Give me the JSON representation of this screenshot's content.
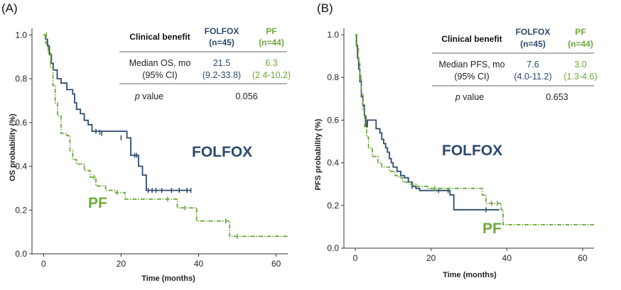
{
  "colors": {
    "folfox": "#2d4a6e",
    "pf": "#6ea83a",
    "axis": "#333333"
  },
  "chart_data": [
    {
      "type": "line",
      "step": true,
      "panel": "(A)",
      "xlabel": "Time (months)",
      "ylabel": "OS probability (%)",
      "xlim": [
        -3,
        63
      ],
      "ylim": [
        0,
        1.03
      ],
      "x_ticks": [
        0,
        20,
        40,
        60
      ],
      "y_ticks": [
        0.0,
        0.2,
        0.4,
        0.6,
        0.8,
        1.0
      ],
      "x_tick_labels": [
        "0",
        "20",
        "40",
        "60"
      ],
      "y_tick_labels": [
        "0.0",
        "0.2",
        "0.4",
        "0.6",
        "0.8",
        "1.0"
      ],
      "series": [
        {
          "name": "FOLFOX",
          "color": "#2d4a6e",
          "dash": "solid",
          "x": [
            0,
            0.5,
            1.0,
            1.5,
            2.0,
            2.5,
            3.5,
            4.5,
            6.0,
            7.5,
            8.0,
            8.5,
            9.5,
            10.5,
            11.5,
            12.5,
            21.5,
            22.5,
            24.5,
            25.5,
            26.5,
            38.0
          ],
          "y": [
            1.0,
            0.98,
            0.95,
            0.91,
            0.87,
            0.84,
            0.8,
            0.78,
            0.75,
            0.73,
            0.69,
            0.66,
            0.64,
            0.61,
            0.59,
            0.56,
            0.53,
            0.45,
            0.4,
            0.36,
            0.29,
            0.29
          ],
          "censored": [
            [
              13.5,
              0.56
            ],
            [
              14.5,
              0.555
            ],
            [
              15.0,
              0.55
            ],
            [
              20.0,
              0.53
            ],
            [
              23.5,
              0.45
            ],
            [
              24.0,
              0.45
            ],
            [
              27.0,
              0.29
            ],
            [
              28.0,
              0.29
            ],
            [
              29.0,
              0.29
            ],
            [
              30.5,
              0.29
            ],
            [
              33.0,
              0.29
            ],
            [
              35.0,
              0.29
            ],
            [
              37.0,
              0.29
            ],
            [
              38.0,
              0.29
            ]
          ]
        },
        {
          "name": "PF",
          "color": "#6ea83a",
          "dash": "dashdot",
          "x": [
            0,
            0.6,
            1.2,
            1.8,
            2.4,
            3.0,
            3.6,
            4.5,
            6.0,
            6.8,
            7.5,
            8.5,
            10.5,
            12.0,
            13.5,
            16.0,
            18.5,
            21.0,
            34.5,
            39.5,
            48.0,
            63.0
          ],
          "y": [
            1.0,
            0.96,
            0.92,
            0.85,
            0.77,
            0.69,
            0.63,
            0.55,
            0.54,
            0.47,
            0.43,
            0.41,
            0.38,
            0.35,
            0.31,
            0.29,
            0.28,
            0.25,
            0.21,
            0.15,
            0.08,
            0.08
          ],
          "censored": [
            [
              0.7,
              1.0
            ],
            [
              13.0,
              0.35
            ],
            [
              19.0,
              0.28
            ],
            [
              32.0,
              0.25
            ],
            [
              36.5,
              0.21
            ],
            [
              47.0,
              0.15
            ],
            [
              50.0,
              0.08
            ]
          ]
        }
      ],
      "annotations": {
        "folfox_label": "FOLFOX",
        "pf_label": "PF"
      },
      "table": {
        "header": {
          "col0": "Clinical benefit",
          "col1_line1": "FOLFOX",
          "col1_line2": "(n=45)",
          "col2_line1": "PF",
          "col2_line2": "(n=44)"
        },
        "row1": {
          "label_line1": "Median OS, mo",
          "label_line2": "(95% CI)",
          "v1_line1": "21.5",
          "v1_line2": "(9.2-33.8)",
          "v2_line1": "6.3",
          "v2_line2": "(2.4-10.2)"
        },
        "row2": {
          "label_p": "p",
          "label_rest": " value",
          "value": "0.056"
        }
      }
    },
    {
      "type": "line",
      "step": true,
      "panel": "(B)",
      "xlabel": "Time (months)",
      "ylabel": "PFS probability (%)",
      "xlim": [
        -3,
        63
      ],
      "ylim": [
        0,
        1.03
      ],
      "x_ticks": [
        0,
        20,
        40,
        60
      ],
      "y_ticks": [
        0.0,
        0.2,
        0.4,
        0.6,
        0.8,
        1.0
      ],
      "x_tick_labels": [
        "0",
        "20",
        "40",
        "60"
      ],
      "y_tick_labels": [
        "0.0",
        "0.2",
        "0.4",
        "0.6",
        "0.8",
        "1.0"
      ],
      "series": [
        {
          "name": "FOLFOX",
          "color": "#2d4a6e",
          "dash": "solid",
          "x": [
            0,
            0.3,
            0.6,
            0.9,
            1.2,
            1.6,
            2.0,
            2.4,
            2.8,
            3.2,
            5.5,
            6.5,
            7.0,
            7.5,
            8.0,
            8.5,
            9.0,
            9.5,
            10.0,
            11.0,
            12.0,
            13.0,
            14.0,
            15.0,
            16.0,
            17.0,
            18.0,
            19.0,
            25.0,
            26.0,
            34.0,
            38.0
          ],
          "y": [
            1.0,
            0.95,
            0.89,
            0.84,
            0.78,
            0.71,
            0.67,
            0.62,
            0.57,
            0.6,
            0.56,
            0.54,
            0.51,
            0.49,
            0.47,
            0.45,
            0.42,
            0.4,
            0.38,
            0.36,
            0.34,
            0.33,
            0.31,
            0.29,
            0.28,
            0.27,
            0.27,
            0.27,
            0.25,
            0.18,
            0.18,
            0.18
          ],
          "censored": [
            [
              15.0,
              0.29
            ],
            [
              22.0,
              0.27
            ],
            [
              24.5,
              0.27
            ],
            [
              34.5,
              0.18
            ]
          ]
        },
        {
          "name": "PF",
          "color": "#6ea83a",
          "dash": "dashdot",
          "x": [
            0,
            0.4,
            0.8,
            1.2,
            1.6,
            2.0,
            2.5,
            3.0,
            3.5,
            4.5,
            6.0,
            7.0,
            9.0,
            10.5,
            11.5,
            12.5,
            14.5,
            16.0,
            19.0,
            20.5,
            33.5,
            34.5,
            37.0,
            38.5,
            39.0,
            63.0
          ],
          "y": [
            1.0,
            0.94,
            0.87,
            0.79,
            0.72,
            0.65,
            0.57,
            0.52,
            0.47,
            0.43,
            0.4,
            0.38,
            0.36,
            0.34,
            0.33,
            0.31,
            0.3,
            0.29,
            0.28,
            0.28,
            0.25,
            0.21,
            0.21,
            0.18,
            0.11,
            0.11
          ],
          "censored": [
            [
              1.5,
              0.8
            ],
            [
              21.0,
              0.28
            ],
            [
              36.0,
              0.21
            ],
            [
              37.5,
              0.21
            ]
          ]
        }
      ],
      "annotations": {
        "folfox_label": "FOLFOX",
        "pf_label": "PF"
      },
      "table": {
        "header": {
          "col0": "Clinical benefit",
          "col1_line1": "FOLFOX",
          "col1_line2": "(n=45)",
          "col2_line1": "PF",
          "col2_line2": "(n=44)"
        },
        "row1": {
          "label_line1": "Median PFS, mo",
          "label_line2": "(95% CI)",
          "v1_line1": "7.6",
          "v1_line2": "(4.0-11.2)",
          "v2_line1": "3.0",
          "v2_line2": "(1.3-4.6)"
        },
        "row2": {
          "label_p": "p",
          "label_rest": " value",
          "value": "0.653"
        }
      }
    }
  ]
}
